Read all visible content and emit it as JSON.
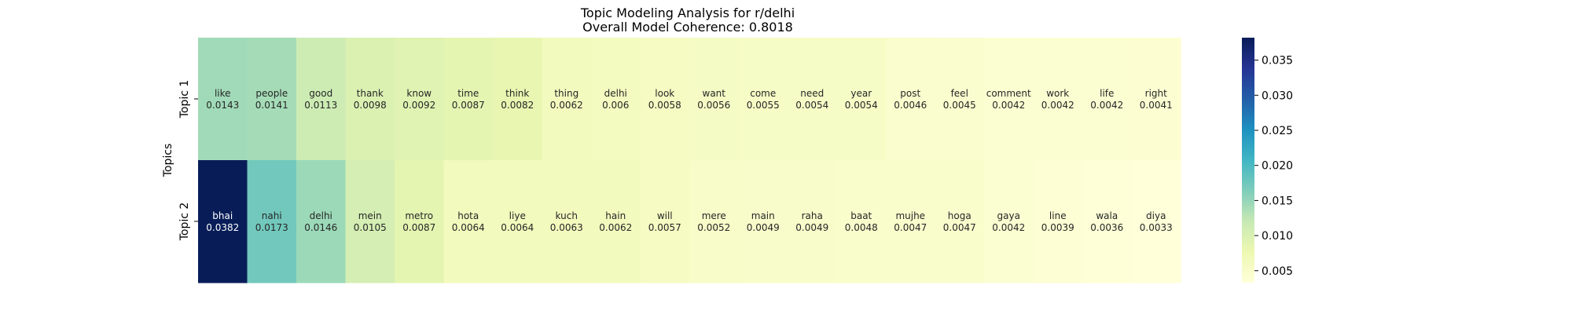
{
  "chart_data": {
    "type": "heatmap",
    "title": "Topic Modeling Analysis for r/delhi",
    "subtitle": "Overall Model Coherence: 0.8018",
    "ylabel": "Topics",
    "xlabel": "",
    "rows": [
      {
        "label": "Topic 1",
        "cells": [
          {
            "word": "like",
            "weight": 0.0143
          },
          {
            "word": "people",
            "weight": 0.0141
          },
          {
            "word": "good",
            "weight": 0.0113
          },
          {
            "word": "thank",
            "weight": 0.0098
          },
          {
            "word": "know",
            "weight": 0.0092
          },
          {
            "word": "time",
            "weight": 0.0087
          },
          {
            "word": "think",
            "weight": 0.0082
          },
          {
            "word": "thing",
            "weight": 0.0062
          },
          {
            "word": "delhi",
            "weight": 0.006
          },
          {
            "word": "look",
            "weight": 0.0058
          },
          {
            "word": "want",
            "weight": 0.0056
          },
          {
            "word": "come",
            "weight": 0.0055
          },
          {
            "word": "need",
            "weight": 0.0054
          },
          {
            "word": "year",
            "weight": 0.0054
          },
          {
            "word": "post",
            "weight": 0.0046
          },
          {
            "word": "feel",
            "weight": 0.0045
          },
          {
            "word": "comment",
            "weight": 0.0042
          },
          {
            "word": "work",
            "weight": 0.0042
          },
          {
            "word": "life",
            "weight": 0.0042
          },
          {
            "word": "right",
            "weight": 0.0041
          }
        ]
      },
      {
        "label": "Topic 2",
        "cells": [
          {
            "word": "bhai",
            "weight": 0.0382
          },
          {
            "word": "nahi",
            "weight": 0.0173
          },
          {
            "word": "delhi",
            "weight": 0.0146
          },
          {
            "word": "mein",
            "weight": 0.0105
          },
          {
            "word": "metro",
            "weight": 0.0087
          },
          {
            "word": "hota",
            "weight": 0.0064
          },
          {
            "word": "liye",
            "weight": 0.0064
          },
          {
            "word": "kuch",
            "weight": 0.0063
          },
          {
            "word": "hain",
            "weight": 0.0062
          },
          {
            "word": "will",
            "weight": 0.0057
          },
          {
            "word": "mere",
            "weight": 0.0052
          },
          {
            "word": "main",
            "weight": 0.0049
          },
          {
            "word": "raha",
            "weight": 0.0049
          },
          {
            "word": "baat",
            "weight": 0.0048
          },
          {
            "word": "mujhe",
            "weight": 0.0047
          },
          {
            "word": "hoga",
            "weight": 0.0047
          },
          {
            "word": "gaya",
            "weight": 0.0042
          },
          {
            "word": "line",
            "weight": 0.0039
          },
          {
            "word": "wala",
            "weight": 0.0036
          },
          {
            "word": "diya",
            "weight": 0.0033
          }
        ]
      }
    ],
    "colorbar": {
      "colormap": "YlGnBu",
      "range": [
        0.0033,
        0.0382
      ],
      "ticks": [
        0.005,
        0.01,
        0.015,
        0.02,
        0.025,
        0.03,
        0.035
      ],
      "tick_labels": [
        "0.005",
        "0.010",
        "0.015",
        "0.020",
        "0.025",
        "0.030",
        "0.035"
      ]
    },
    "colors": {
      "text_light": "#ffffff",
      "text_dark": "#262626",
      "axis": "#000000"
    }
  }
}
